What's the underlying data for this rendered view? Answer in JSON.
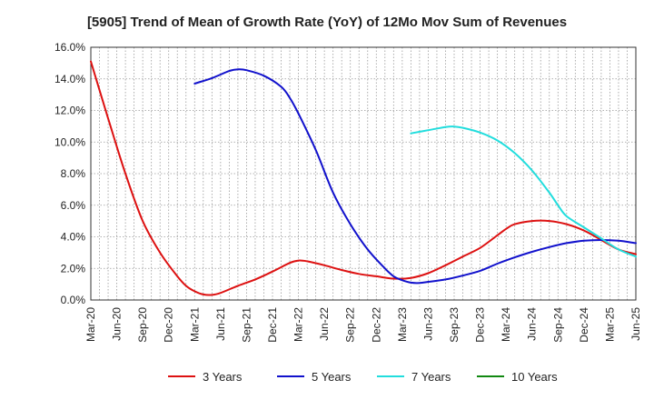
{
  "chart_data": {
    "type": "line",
    "title": "[5905]  Trend of Mean of Growth Rate (YoY) of 12Mo Mov Sum of Revenues",
    "xlabel": "",
    "ylabel": "",
    "ylim": [
      0,
      16
    ],
    "y_ticks": [
      0,
      2,
      4,
      6,
      8,
      10,
      12,
      14,
      16
    ],
    "y_tick_labels": [
      "0.0%",
      "2.0%",
      "4.0%",
      "6.0%",
      "8.0%",
      "10.0%",
      "12.0%",
      "14.0%",
      "16.0%"
    ],
    "x_range": [
      0,
      63
    ],
    "x_tick_labels": [
      "Mar-20",
      "Jun-20",
      "Sep-20",
      "Dec-20",
      "Mar-21",
      "Jun-21",
      "Sep-21",
      "Dec-21",
      "Mar-22",
      "Jun-22",
      "Sep-22",
      "Dec-22",
      "Mar-23",
      "Jun-23",
      "Sep-23",
      "Dec-23",
      "Mar-24",
      "Jun-24",
      "Sep-24",
      "Dec-24",
      "Mar-25",
      "Jun-25"
    ],
    "grid": true,
    "legend_position": "bottom",
    "series": [
      {
        "name": "3 Years",
        "color": "#dd1111",
        "points": [
          [
            0,
            15.1
          ],
          [
            2,
            11.5
          ],
          [
            4,
            8.0
          ],
          [
            6,
            5.0
          ],
          [
            8,
            3.0
          ],
          [
            10,
            1.5
          ],
          [
            11,
            0.9
          ],
          [
            12,
            0.55
          ],
          [
            13,
            0.35
          ],
          [
            14,
            0.32
          ],
          [
            15,
            0.45
          ],
          [
            17,
            0.9
          ],
          [
            19,
            1.3
          ],
          [
            21,
            1.8
          ],
          [
            23,
            2.35
          ],
          [
            24,
            2.5
          ],
          [
            25,
            2.45
          ],
          [
            27,
            2.2
          ],
          [
            29,
            1.9
          ],
          [
            31,
            1.65
          ],
          [
            33,
            1.5
          ],
          [
            35,
            1.35
          ],
          [
            37,
            1.4
          ],
          [
            39,
            1.7
          ],
          [
            41,
            2.2
          ],
          [
            43,
            2.75
          ],
          [
            45,
            3.3
          ],
          [
            47,
            4.1
          ],
          [
            48,
            4.5
          ],
          [
            49,
            4.8
          ],
          [
            51,
            5.0
          ],
          [
            53,
            5.0
          ],
          [
            55,
            4.8
          ],
          [
            57,
            4.4
          ],
          [
            59,
            3.8
          ],
          [
            61,
            3.2
          ],
          [
            63,
            2.9
          ]
        ]
      },
      {
        "name": "5 Years",
        "color": "#1111cc",
        "points": [
          [
            12,
            13.7
          ],
          [
            14,
            14.05
          ],
          [
            16,
            14.5
          ],
          [
            17,
            14.6
          ],
          [
            18,
            14.55
          ],
          [
            20,
            14.2
          ],
          [
            22,
            13.5
          ],
          [
            23,
            12.8
          ],
          [
            24,
            11.8
          ],
          [
            26,
            9.5
          ],
          [
            28,
            6.8
          ],
          [
            30,
            4.8
          ],
          [
            32,
            3.2
          ],
          [
            34,
            2.0
          ],
          [
            35,
            1.5
          ],
          [
            36,
            1.25
          ],
          [
            37,
            1.1
          ],
          [
            38,
            1.08
          ],
          [
            39,
            1.15
          ],
          [
            41,
            1.3
          ],
          [
            43,
            1.55
          ],
          [
            45,
            1.85
          ],
          [
            47,
            2.3
          ],
          [
            49,
            2.7
          ],
          [
            51,
            3.05
          ],
          [
            53,
            3.35
          ],
          [
            55,
            3.6
          ],
          [
            57,
            3.75
          ],
          [
            59,
            3.8
          ],
          [
            61,
            3.75
          ],
          [
            63,
            3.6
          ]
        ]
      },
      {
        "name": "7 Years",
        "color": "#22dddd",
        "points": [
          [
            37,
            10.55
          ],
          [
            39,
            10.75
          ],
          [
            41,
            10.95
          ],
          [
            42,
            10.98
          ],
          [
            43,
            10.9
          ],
          [
            45,
            10.6
          ],
          [
            47,
            10.1
          ],
          [
            49,
            9.3
          ],
          [
            51,
            8.2
          ],
          [
            53,
            6.8
          ],
          [
            54,
            6.0
          ],
          [
            55,
            5.3
          ],
          [
            57,
            4.6
          ],
          [
            59,
            3.9
          ],
          [
            61,
            3.2
          ],
          [
            63,
            2.75
          ]
        ]
      },
      {
        "name": "10 Years",
        "color": "#118811",
        "points": []
      }
    ]
  }
}
